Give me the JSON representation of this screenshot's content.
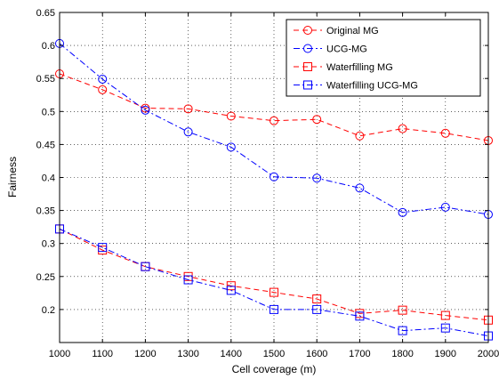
{
  "chart_data": {
    "type": "line",
    "title": "",
    "xlabel": "Cell coverage (m)",
    "ylabel": "Fairness",
    "x": [
      1000,
      1100,
      1200,
      1300,
      1400,
      1500,
      1600,
      1700,
      1800,
      1900,
      2000
    ],
    "xlim": [
      1000,
      2000
    ],
    "ylim": [
      0.15,
      0.65
    ],
    "xticks": [
      1000,
      1100,
      1200,
      1300,
      1400,
      1500,
      1600,
      1700,
      1800,
      1900,
      2000
    ],
    "yticks": [
      0.2,
      0.25,
      0.3,
      0.35,
      0.4,
      0.45,
      0.5,
      0.55,
      0.6,
      0.65
    ],
    "xtick_labels": [
      "1000",
      "1100",
      "1200",
      "1300",
      "1400",
      "1500",
      "1600",
      "1700",
      "1800",
      "1900",
      "2000"
    ],
    "ytick_labels": [
      "0.2",
      "0.25",
      "0.3",
      "0.35",
      "0.4",
      "0.45",
      "0.5",
      "0.55",
      "0.6",
      "0.65"
    ],
    "grid": true,
    "legend_position": "top-right",
    "series": [
      {
        "name": "Original MG",
        "color": "#ff0000",
        "marker": "circle",
        "line": "dashed",
        "values": [
          0.557,
          0.533,
          0.505,
          0.504,
          0.493,
          0.486,
          0.488,
          0.463,
          0.474,
          0.467,
          0.456
        ]
      },
      {
        "name": "UCG-MG",
        "color": "#0000ff",
        "marker": "circle",
        "line": "dashdot",
        "values": [
          0.603,
          0.549,
          0.502,
          0.469,
          0.446,
          0.401,
          0.399,
          0.384,
          0.347,
          0.355,
          0.344
        ]
      },
      {
        "name": "Waterfilling MG",
        "color": "#ff0000",
        "marker": "square",
        "line": "dashed",
        "values": [
          0.322,
          0.29,
          0.265,
          0.25,
          0.236,
          0.226,
          0.216,
          0.194,
          0.199,
          0.191,
          0.184
        ]
      },
      {
        "name": "Waterfilling UCG-MG",
        "color": "#0000ff",
        "marker": "square",
        "line": "dashdot",
        "values": [
          0.322,
          0.294,
          0.265,
          0.245,
          0.229,
          0.2,
          0.2,
          0.19,
          0.168,
          0.172,
          0.16
        ]
      }
    ]
  }
}
